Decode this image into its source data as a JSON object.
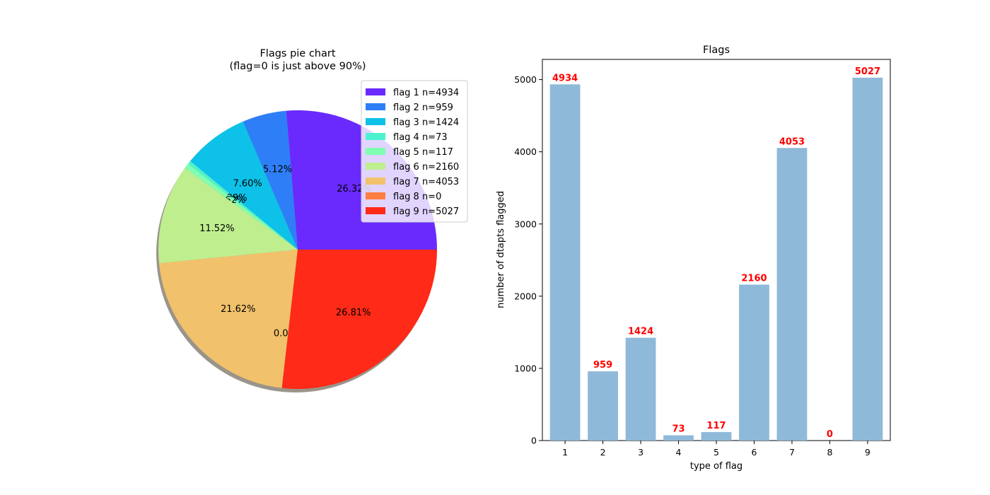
{
  "chart_data": [
    {
      "type": "pie",
      "title": "Flags pie chart",
      "subtitle": "(flag=0 is just above 90%)",
      "categories": [
        "flag 1",
        "flag 2",
        "flag 3",
        "flag 4",
        "flag 5",
        "flag 6",
        "flag 7",
        "flag 8",
        "flag 9"
      ],
      "values": [
        4934,
        959,
        1424,
        73,
        117,
        2160,
        4053,
        0,
        5027
      ],
      "pct_labels": [
        "26.32%",
        "5.12%",
        "7.60%",
        "0.39%",
        "0.62%",
        "11.52%",
        "21.62%",
        "0.00%",
        "26.81%"
      ],
      "legend": [
        "flag 1 n=4934",
        "flag 2 n=959",
        "flag 3 n=1424",
        "flag 4 n=73",
        "flag 5 n=117",
        "flag 6 n=2160",
        "flag 7 n=4053",
        "flag 8 n=0",
        "flag 9 n=5027"
      ],
      "colors": [
        "#6a2afe",
        "#2e7ff7",
        "#0ec1e8",
        "#4cf2cd",
        "#80feb1",
        "#bfee8f",
        "#f2c16b",
        "#ff7e41",
        "#ff2a17"
      ],
      "legend_placement": "upper-right",
      "shadow": true
    },
    {
      "type": "bar",
      "title": "Flags",
      "xlabel": "type of flag",
      "ylabel": "number of dtapts flagged",
      "categories": [
        "1",
        "2",
        "3",
        "4",
        "5",
        "6",
        "7",
        "8",
        "9"
      ],
      "values": [
        4934,
        959,
        1424,
        73,
        117,
        2160,
        4053,
        0,
        5027
      ],
      "value_labels": [
        "4934",
        "959",
        "1424",
        "73",
        "117",
        "2160",
        "4053",
        "0",
        "5027"
      ],
      "ylim": [
        0,
        5280
      ],
      "yticks": [
        "0",
        "1000",
        "2000",
        "3000",
        "4000",
        "5000"
      ],
      "bar_color": "#8fb9d8",
      "label_color": "#ff0000",
      "grid": false
    }
  ]
}
